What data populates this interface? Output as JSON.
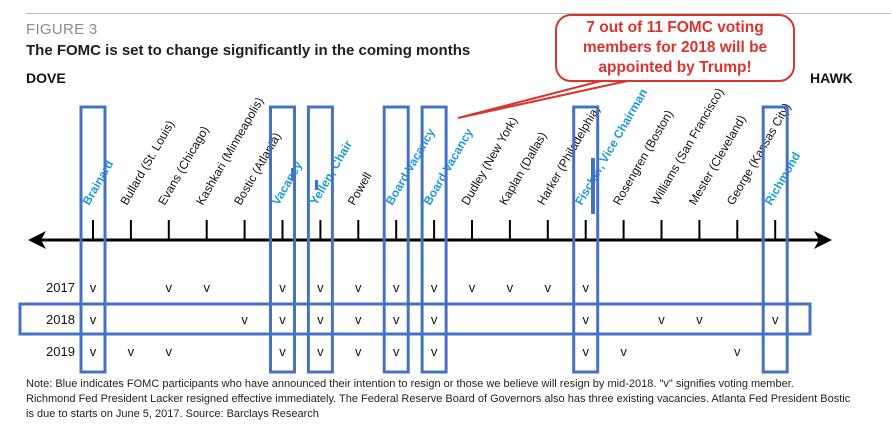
{
  "header": {
    "figure_label": "FIGURE 3",
    "title": "The FOMC is set to change significantly in the coming months"
  },
  "callout": {
    "text": "7 out of 11 FOMC voting members for 2018 will be appointed by Trump!"
  },
  "colors": {
    "blue_label": "#1f9ad6",
    "box_blue": "#4472c4",
    "callout_red": "#d9352e",
    "text": "#111111"
  },
  "chart_data": {
    "type": "table",
    "scale": {
      "left": "DOVE",
      "right": "HAWK"
    },
    "participants": [
      {
        "name": "Brainard",
        "blue": true
      },
      {
        "name": "Bullard (St. Louis)",
        "blue": false
      },
      {
        "name": "Evans (Chicago)",
        "blue": false
      },
      {
        "name": "Kashkari (Minneapolis)",
        "blue": false
      },
      {
        "name": "Bostic (Atlanta)",
        "blue": false
      },
      {
        "name": "Vacancy",
        "blue": true
      },
      {
        "name": "Yellen, Chair",
        "blue": true
      },
      {
        "name": "Powell",
        "blue": false
      },
      {
        "name": "Board Vacancy",
        "blue": true
      },
      {
        "name": "Board Vacancy",
        "blue": true
      },
      {
        "name": "Dudley (New York)",
        "blue": false
      },
      {
        "name": "Kaplan (Dallas)",
        "blue": false
      },
      {
        "name": "Harker (Philadelphia)",
        "blue": false
      },
      {
        "name": "Fischer, Vice Chairman",
        "blue": true
      },
      {
        "name": "Rosengren (Boston)",
        "blue": false
      },
      {
        "name": "Williams (San Francisco)",
        "blue": false
      },
      {
        "name": "Mester (Cleveland)",
        "blue": false
      },
      {
        "name": "George (Kansas City)",
        "blue": false
      },
      {
        "name": "Richmond",
        "blue": true
      }
    ],
    "years": [
      "2017",
      "2018",
      "2019"
    ],
    "vote_mark": "v",
    "votes": {
      "2017": [
        0,
        2,
        3,
        5,
        6,
        7,
        8,
        9,
        10,
        11,
        12,
        13
      ],
      "2018": [
        0,
        4,
        5,
        6,
        7,
        8,
        9,
        13,
        15,
        16,
        18
      ],
      "2019": [
        0,
        1,
        2,
        5,
        6,
        7,
        8,
        9,
        13,
        14,
        17
      ]
    },
    "boxed_participants": [
      0,
      5,
      6,
      8,
      9,
      13,
      18
    ],
    "highlighted_year": "2018"
  },
  "note": {
    "line1": "Note: Blue indicates FOMC participants who have announced their intention to resign or those we believe will resign by mid-2018.   \"v\" signifies    voting member.",
    "line2": "Richmond Fed President Lacker resigned effective immediately. The Federal Reserve Board of Governors also has three existing vacancies. Atlanta Fed President Bostic",
    "line3": "is due to starts on June 5, 2017.   Source: Barclays Research"
  }
}
